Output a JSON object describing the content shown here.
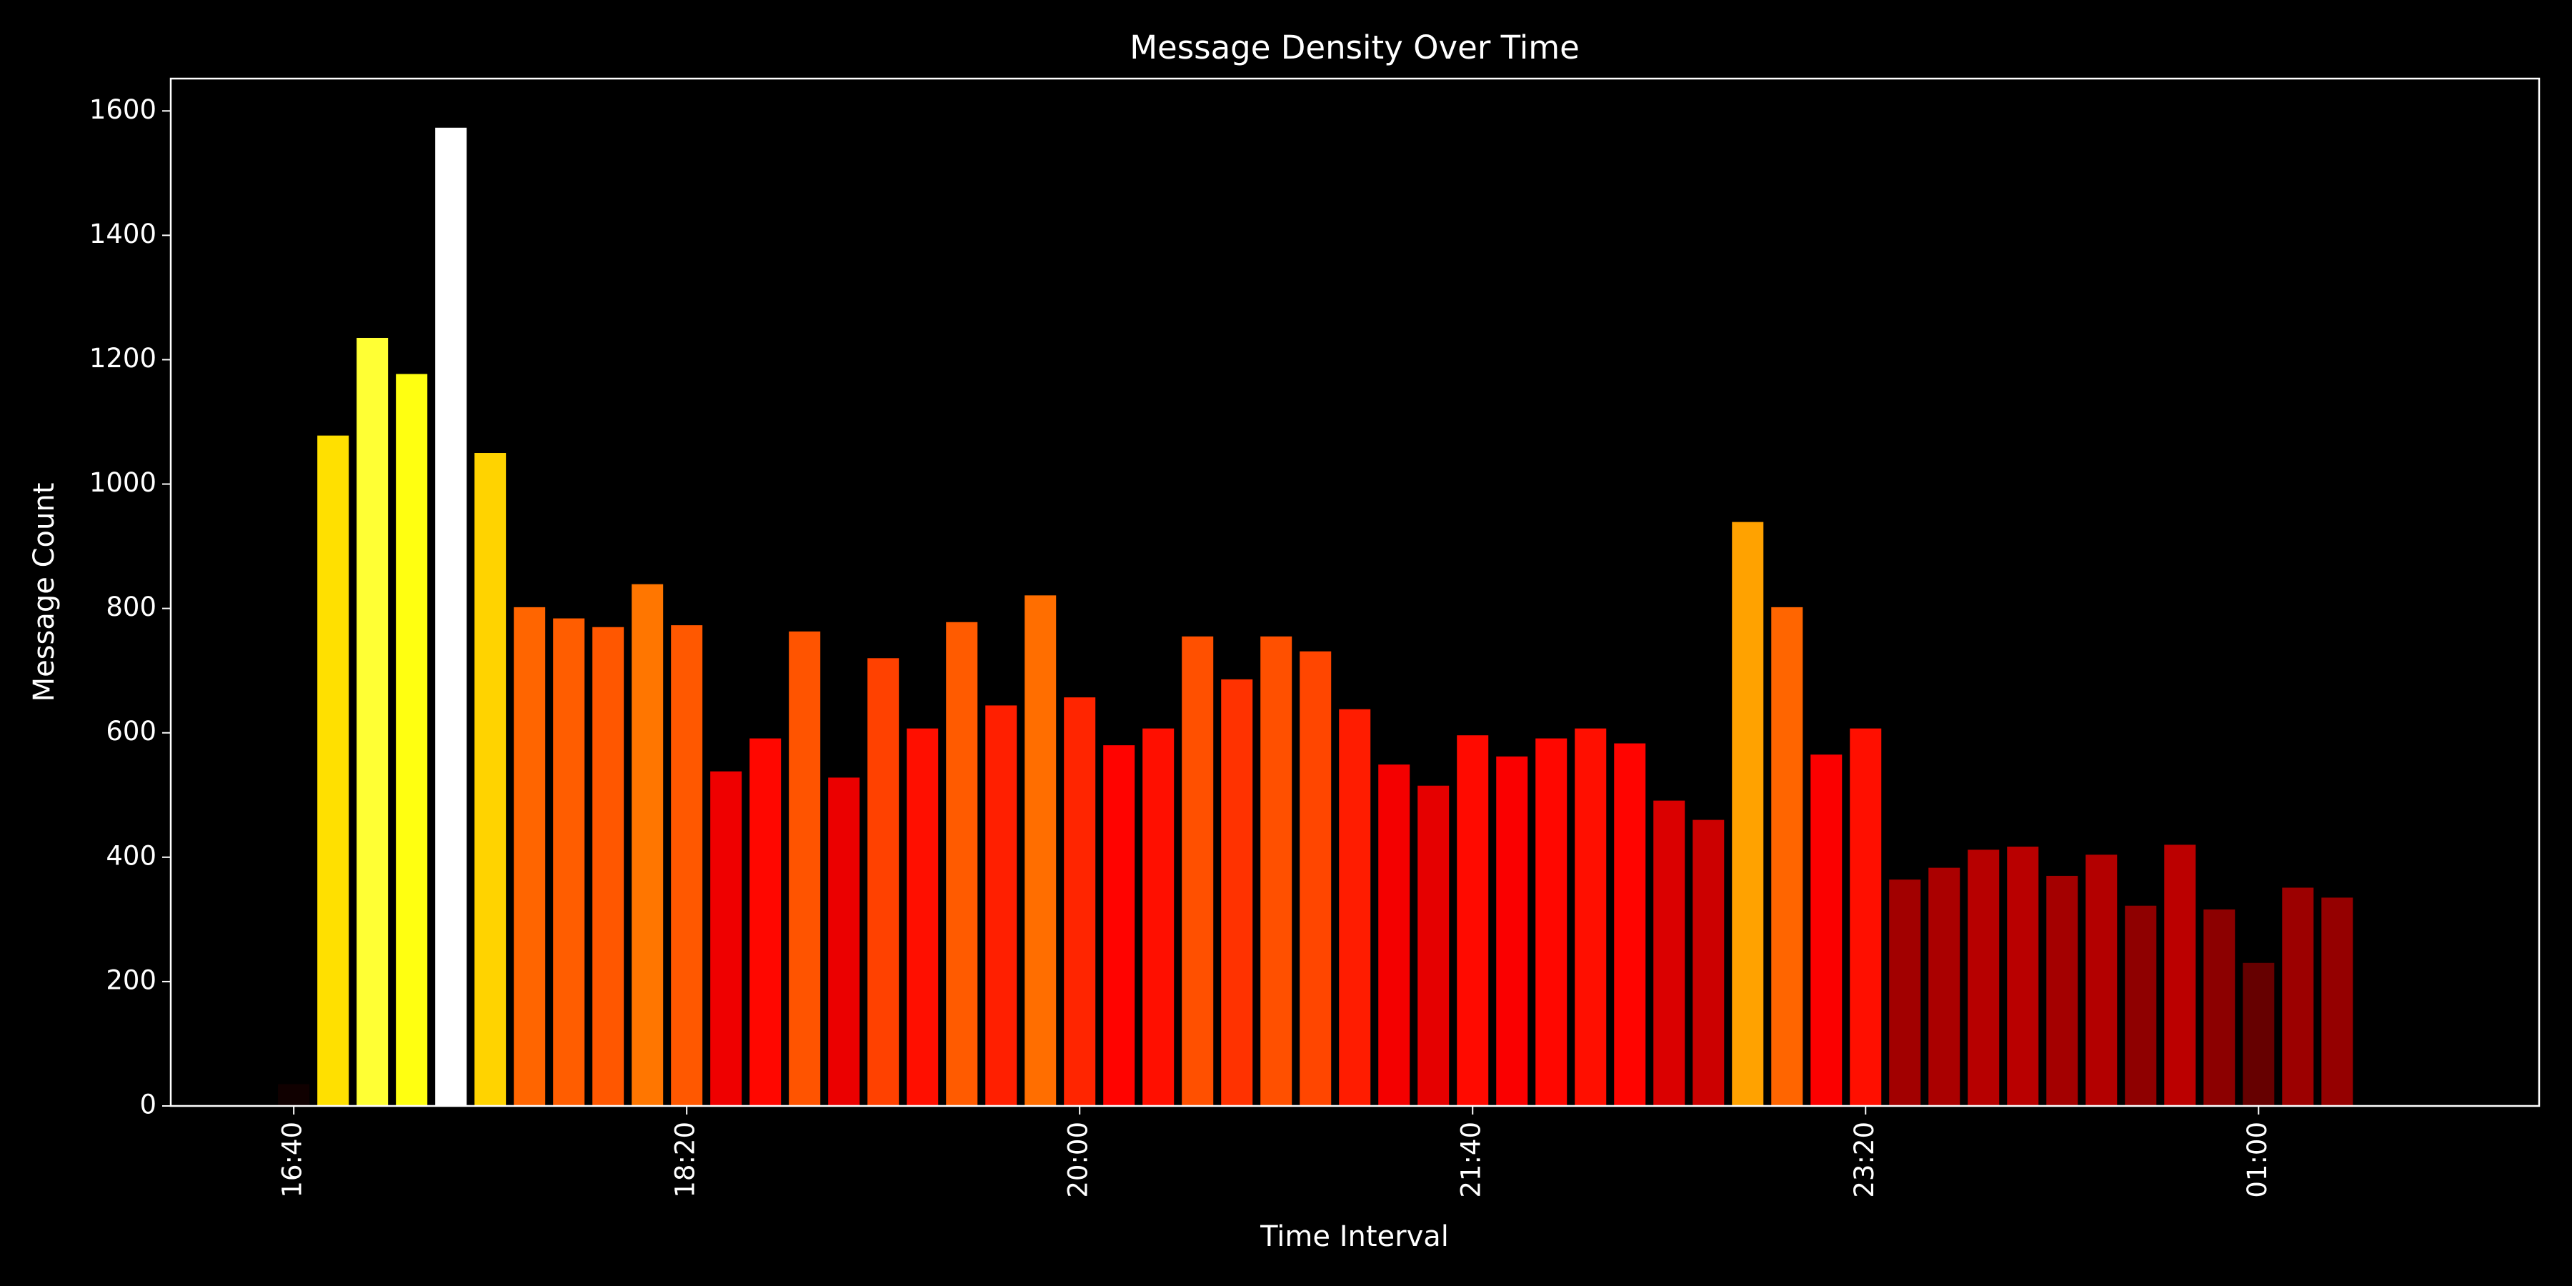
{
  "chart_data": {
    "type": "bar",
    "title": "Message Density Over Time",
    "x_label": "Time Interval",
    "y_label": "Message Count",
    "categories": [
      "16:40",
      null,
      null,
      null,
      null,
      null,
      null,
      null,
      null,
      null,
      "18:20",
      null,
      null,
      null,
      null,
      null,
      null,
      null,
      null,
      null,
      "20:00",
      null,
      null,
      null,
      null,
      null,
      null,
      null,
      null,
      null,
      "21:40",
      null,
      null,
      null,
      null,
      null,
      null,
      null,
      null,
      null,
      "23:20",
      null,
      null,
      null,
      null,
      null,
      null,
      null,
      null,
      null,
      "01:00",
      null,
      null
    ],
    "values": [
      35,
      1078,
      1235,
      1177,
      1573,
      1050,
      802,
      784,
      770,
      839,
      773,
      538,
      591,
      763,
      528,
      720,
      607,
      778,
      644,
      821,
      657,
      580,
      607,
      755,
      686,
      755,
      731,
      638,
      549,
      515,
      596,
      562,
      591,
      607,
      583,
      491,
      460,
      939,
      802,
      565,
      607,
      364,
      383,
      412,
      417,
      370,
      404,
      322,
      420,
      316,
      230,
      351,
      335
    ],
    "colormap": "hot",
    "ylim": [
      0,
      1652
    ],
    "yticks": [
      0,
      200,
      400,
      600,
      800,
      1000,
      1200,
      1400,
      1600
    ]
  }
}
